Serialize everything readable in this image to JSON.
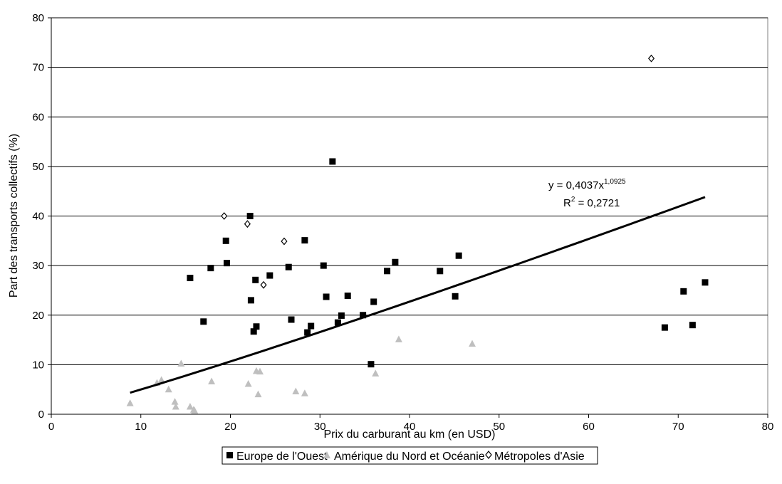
{
  "chart_data": {
    "type": "scatter",
    "xlabel": "Prix du carburant au km (en USD)",
    "ylabel": "Part des transports collectifs (%)",
    "xlim": [
      0,
      80
    ],
    "ylim": [
      0,
      80
    ],
    "xticks": [
      0,
      10,
      20,
      30,
      40,
      50,
      60,
      70,
      80
    ],
    "yticks": [
      0,
      10,
      20,
      30,
      40,
      50,
      60,
      70,
      80
    ],
    "grid": "horizontal",
    "legend_position": "bottom",
    "series": [
      {
        "name": "Europe de l'Ouest",
        "marker": "square",
        "color": "#000000",
        "points": [
          [
            15.5,
            27.5
          ],
          [
            17.0,
            18.7
          ],
          [
            17.8,
            29.5
          ],
          [
            19.5,
            35.0
          ],
          [
            19.6,
            30.5
          ],
          [
            22.2,
            40.0
          ],
          [
            22.3,
            23.0
          ],
          [
            22.6,
            16.7
          ],
          [
            22.8,
            27.1
          ],
          [
            22.9,
            17.7
          ],
          [
            24.4,
            28.0
          ],
          [
            26.5,
            29.7
          ],
          [
            26.8,
            19.1
          ],
          [
            28.3,
            35.1
          ],
          [
            28.6,
            16.5
          ],
          [
            29.0,
            17.8
          ],
          [
            30.4,
            30.0
          ],
          [
            30.7,
            23.7
          ],
          [
            31.4,
            51.0
          ],
          [
            32.0,
            18.5
          ],
          [
            32.4,
            19.9
          ],
          [
            33.1,
            23.9
          ],
          [
            34.8,
            20.0
          ],
          [
            35.7,
            10.1
          ],
          [
            36.0,
            22.7
          ],
          [
            37.5,
            28.9
          ],
          [
            38.4,
            30.7
          ],
          [
            43.4,
            28.9
          ],
          [
            45.1,
            23.8
          ],
          [
            45.5,
            32.0
          ],
          [
            68.5,
            17.5
          ],
          [
            70.6,
            24.8
          ],
          [
            71.6,
            18.0
          ],
          [
            73.0,
            26.6
          ]
        ]
      },
      {
        "name": "Amérique du Nord et Océanie",
        "marker": "triangle",
        "color": "#bfbfbf",
        "points": [
          [
            8.8,
            2.2
          ],
          [
            11.8,
            6.3
          ],
          [
            12.3,
            6.9
          ],
          [
            13.1,
            5.0
          ],
          [
            13.8,
            2.5
          ],
          [
            13.9,
            1.5
          ],
          [
            14.5,
            10.2
          ],
          [
            15.5,
            1.5
          ],
          [
            15.9,
            0.9
          ],
          [
            16.0,
            0.7
          ],
          [
            17.9,
            6.6
          ],
          [
            22.0,
            6.1
          ],
          [
            22.9,
            8.7
          ],
          [
            23.1,
            4.0
          ],
          [
            23.3,
            8.6
          ],
          [
            27.3,
            4.6
          ],
          [
            28.3,
            4.2
          ],
          [
            36.2,
            8.2
          ],
          [
            38.8,
            15.1
          ],
          [
            47.0,
            14.2
          ]
        ]
      },
      {
        "name": "Métropoles d'Asie",
        "marker": "diamond",
        "color": "#000000",
        "points": [
          [
            19.3,
            40.0
          ],
          [
            21.9,
            38.4
          ],
          [
            23.7,
            26.1
          ],
          [
            26.0,
            34.9
          ],
          [
            67.0,
            71.8
          ]
        ]
      }
    ],
    "trendline": {
      "type": "power",
      "coefficient": 0.4037,
      "exponent": 1.0925,
      "x_range": [
        8.8,
        73.0
      ],
      "equation_prefix": "y = 0,4037x",
      "equation_exponent": "1,0925",
      "r2_prefix": "R",
      "r2_exponent": "2",
      "r2_value": " = 0,2721"
    }
  }
}
